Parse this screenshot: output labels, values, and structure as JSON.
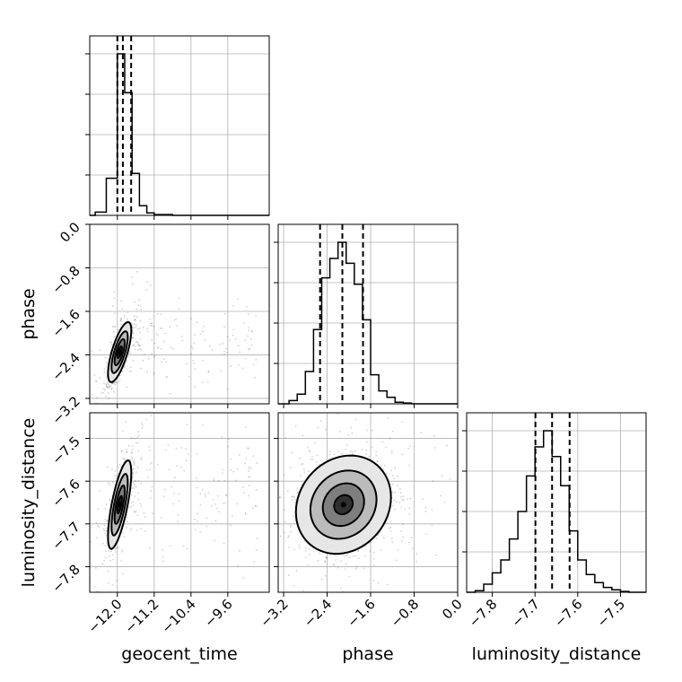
{
  "chart_data": {
    "type": "corner",
    "parameters": [
      {
        "name": "geocent_time",
        "label": "geocent_time",
        "range": [
          -12.6,
          -8.7
        ],
        "ticks": [
          -12.0,
          -11.2,
          -10.4,
          -9.6
        ],
        "tick_labels": [
          "−12.0",
          "−11.2",
          "−10.4",
          "−9.6"
        ],
        "quantiles": [
          -12.0,
          -11.88,
          -11.7
        ],
        "hist_bins": [
          -12.48,
          -12.24,
          -12.0,
          -11.84,
          -11.68,
          -11.52,
          -11.36,
          -11.2,
          -10.8
        ],
        "hist_counts": [
          0.02,
          0.23,
          1.0,
          0.76,
          0.26,
          0.06,
          0.015,
          0.005
        ]
      },
      {
        "name": "phase",
        "label": "phase",
        "range": [
          -3.3,
          0.0
        ],
        "ticks": [
          -3.2,
          -2.4,
          -1.6,
          -0.8,
          0.0
        ],
        "tick_labels": [
          "−3.2",
          "−2.4",
          "−1.6",
          "−0.8",
          "0.0"
        ],
        "quantiles": [
          -2.53,
          -2.12,
          -1.74
        ],
        "hist_bins": [
          -3.1,
          -2.95,
          -2.8,
          -2.65,
          -2.5,
          -2.35,
          -2.2,
          -2.05,
          -1.9,
          -1.75,
          -1.6,
          -1.45,
          -1.3,
          -1.15,
          -1.0,
          -0.85
        ],
        "hist_counts": [
          0.02,
          0.06,
          0.2,
          0.46,
          0.78,
          0.9,
          1.0,
          0.87,
          0.74,
          0.52,
          0.18,
          0.08,
          0.04,
          0.01,
          0.005
        ]
      },
      {
        "name": "luminosity_distance",
        "label": "luminosity_distance",
        "range": [
          -7.86,
          -7.44
        ],
        "ticks": [
          -7.8,
          -7.7,
          -7.6,
          -7.5
        ],
        "tick_labels": [
          "−7.8",
          "−7.7",
          "−7.6",
          "−7.5"
        ],
        "quantiles": [
          -7.699,
          -7.66,
          -7.619
        ],
        "hist_bins": [
          -7.84,
          -7.82,
          -7.8,
          -7.78,
          -7.76,
          -7.74,
          -7.72,
          -7.7,
          -7.68,
          -7.66,
          -7.64,
          -7.62,
          -7.6,
          -7.58,
          -7.56,
          -7.54,
          -7.52,
          -7.5,
          -7.48
        ],
        "hist_counts": [
          0.01,
          0.05,
          0.12,
          0.2,
          0.33,
          0.5,
          0.72,
          0.9,
          1.0,
          0.84,
          0.66,
          0.38,
          0.2,
          0.11,
          0.06,
          0.03,
          0.015,
          0.005
        ]
      }
    ],
    "pairs": [
      {
        "x": "geocent_time",
        "y": "phase",
        "center": [
          -11.95,
          -2.35
        ],
        "sigma": [
          0.11,
          0.24
        ],
        "rho": 0.72,
        "n_points": 1300
      },
      {
        "x": "geocent_time",
        "y": "luminosity_distance",
        "center": [
          -11.95,
          -7.655
        ],
        "sigma": [
          0.11,
          0.045
        ],
        "rho": 0.72,
        "n_points": 1300
      },
      {
        "x": "phase",
        "y": "luminosity_distance",
        "center": [
          -2.1,
          -7.655
        ],
        "sigma": [
          0.38,
          0.05
        ],
        "rho": 0.15,
        "n_points": 1800
      }
    ],
    "grid": true
  }
}
